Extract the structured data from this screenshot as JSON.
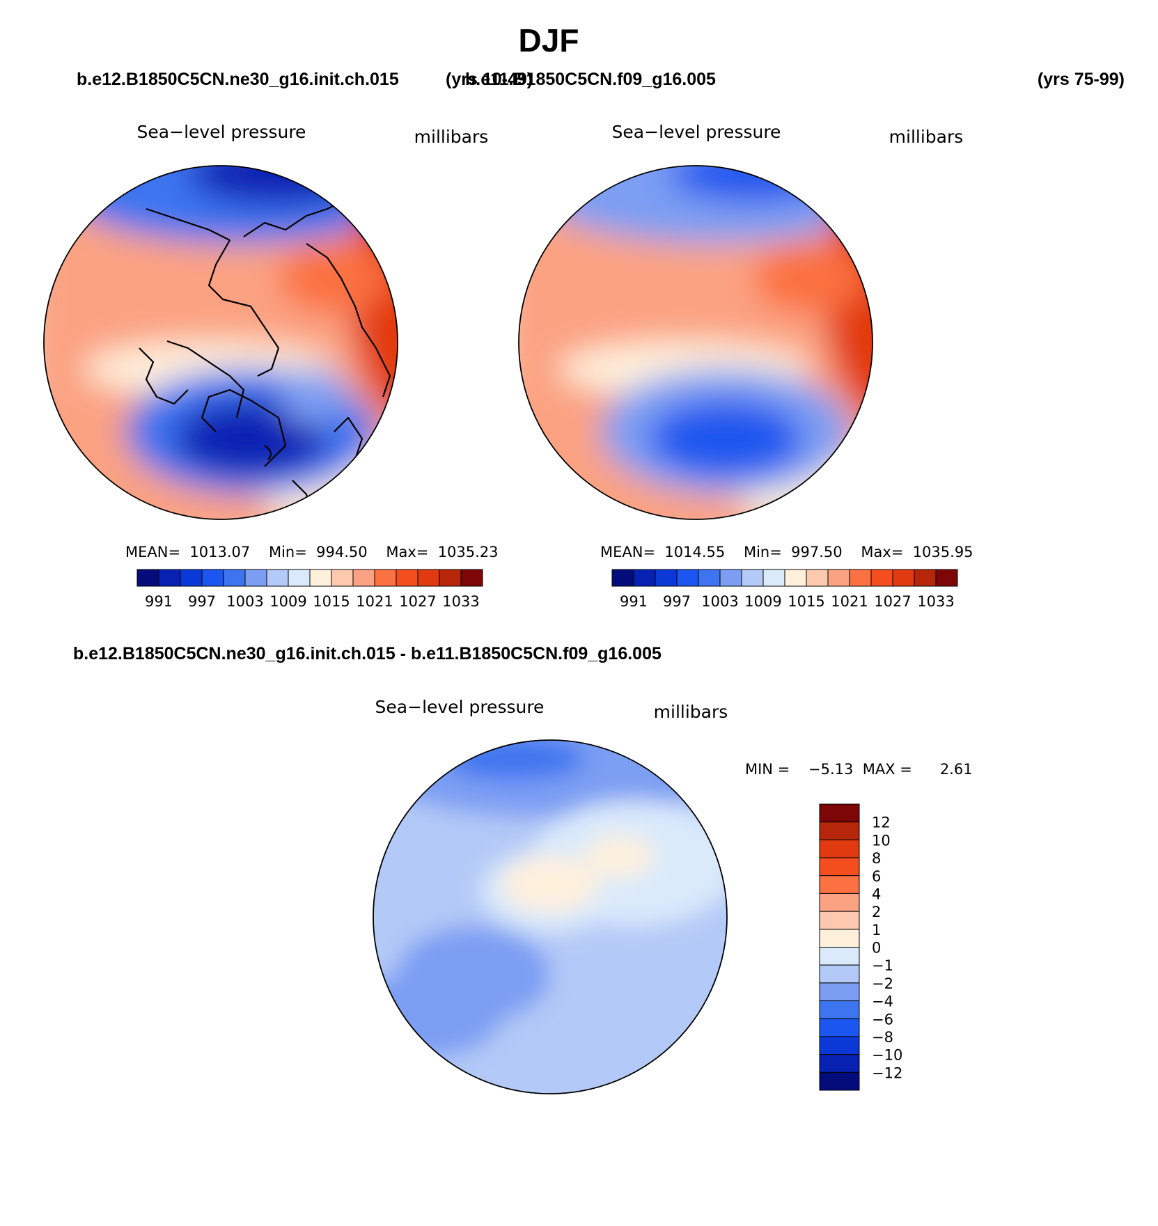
{
  "page": {
    "title": "DJF",
    "case_a": "b.e12.B1850C5CN.ne30_g16.init.ch.015",
    "case_a_years": "(yrs 10-49)",
    "case_b": "b.e11.B1850C5CN.f09_g16.005",
    "case_b_years": "(yrs 75-99)",
    "diff_title": "b.e12.B1850C5CN.ne30_g16.init.ch.015 - b.e11.B1850C5CN.f09_g16.005"
  },
  "chart_data": [
    {
      "type": "heatmap",
      "title": "Sea−level pressure",
      "units": "millibars",
      "stats": "MEAN=  1013.07    Min=  994.50    Max=  1035.23",
      "colorbar_ticks": [
        "991",
        "997",
        "1003",
        "1009",
        "1015",
        "1021",
        "1027",
        "1033"
      ],
      "colorbar_colors": [
        "#030c7a",
        "#0722b3",
        "#0a39d8",
        "#1a56ef",
        "#3d75f0",
        "#7b9ef3",
        "#b3c9f7",
        "#daeafb",
        "#fff0dc",
        "#fdc9ae",
        "#fba282",
        "#fb7141",
        "#f54e1e",
        "#e23a10",
        "#b6260b",
        "#7d0606"
      ]
    },
    {
      "type": "heatmap",
      "title": "Sea−level pressure",
      "units": "millibars",
      "stats": "MEAN=  1014.55    Min=  997.50    Max=  1035.95",
      "colorbar_ticks": [
        "991",
        "997",
        "1003",
        "1009",
        "1015",
        "1021",
        "1027",
        "1033"
      ],
      "colorbar_colors": [
        "#030c7a",
        "#0722b3",
        "#0a39d8",
        "#1a56ef",
        "#3d75f0",
        "#7b9ef3",
        "#b3c9f7",
        "#daeafb",
        "#fff0dc",
        "#fdc9ae",
        "#fba282",
        "#fb7141",
        "#f54e1e",
        "#e23a10",
        "#b6260b",
        "#7d0606"
      ]
    },
    {
      "type": "heatmap",
      "title": "Sea−level pressure",
      "units": "millibars",
      "stats": "MIN =    −5.13  MAX =      2.61",
      "colorbar_ticks": [
        "12",
        "10",
        "8",
        "6",
        "4",
        "2",
        "1",
        "0",
        "−1",
        "−2",
        "−4",
        "−6",
        "−8",
        "−10",
        "−12"
      ],
      "colorbar_colors": [
        "#7d0606",
        "#b6260b",
        "#e23a10",
        "#f54e1e",
        "#fb7141",
        "#fba282",
        "#fdc9ae",
        "#fff0dc",
        "#daeafb",
        "#b3c9f7",
        "#7b9ef3",
        "#3d75f0",
        "#1a56ef",
        "#0a39d8",
        "#0722b3",
        "#030c7a"
      ]
    }
  ]
}
